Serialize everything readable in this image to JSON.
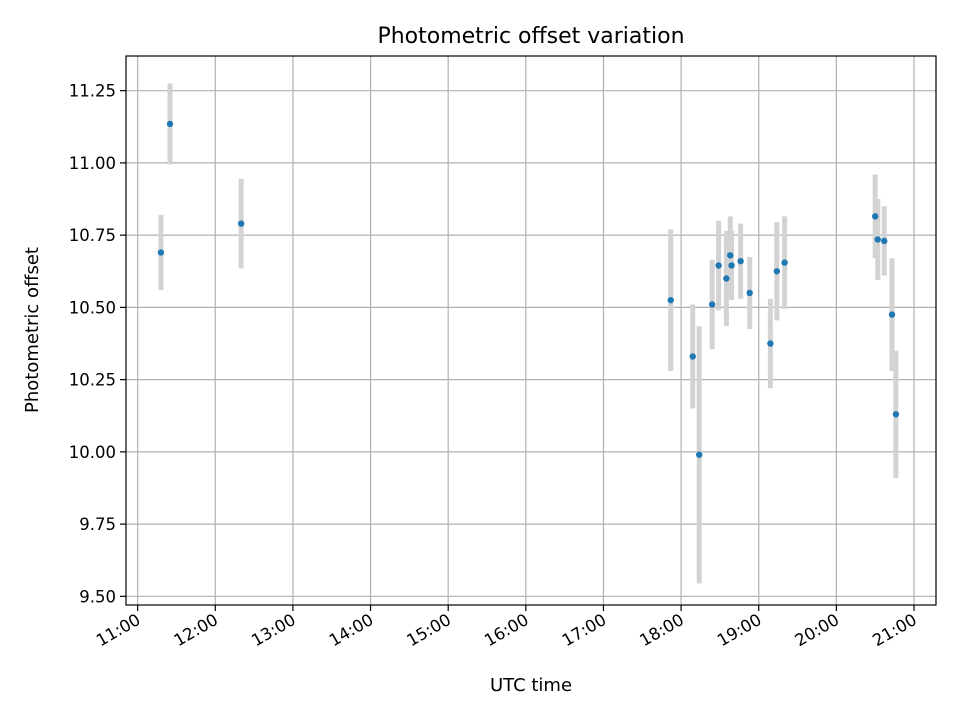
{
  "chart_data": {
    "type": "scatter",
    "title": "Photometric offset variation",
    "xlabel": "UTC time",
    "ylabel": "Photometric offset",
    "x_tick_labels": [
      "11:00",
      "12:00",
      "13:00",
      "14:00",
      "15:00",
      "16:00",
      "17:00",
      "18:00",
      "19:00",
      "20:00",
      "21:00"
    ],
    "y_tick_labels": [
      "9.50",
      "9.75",
      "10.00",
      "10.25",
      "10.50",
      "10.75",
      "11.00",
      "11.25"
    ],
    "xlim": [
      "10:51",
      "21:17"
    ],
    "ylim": [
      9.47,
      11.37
    ],
    "grid": true,
    "marker_color": "#1f77b4",
    "errorbar_color": "#d3d3d3",
    "points": [
      {
        "x": "11:18",
        "y": 10.69,
        "err": 0.13
      },
      {
        "x": "11:25",
        "y": 11.135,
        "err": 0.14
      },
      {
        "x": "12:20",
        "y": 10.79,
        "err": 0.155
      },
      {
        "x": "17:52",
        "y": 10.525,
        "err": 0.245
      },
      {
        "x": "18:09",
        "y": 10.33,
        "err": 0.18
      },
      {
        "x": "18:14",
        "y": 9.99,
        "err": 0.445
      },
      {
        "x": "18:24",
        "y": 10.51,
        "err": 0.155
      },
      {
        "x": "18:29",
        "y": 10.645,
        "err": 0.155
      },
      {
        "x": "18:35",
        "y": 10.6,
        "err": 0.165
      },
      {
        "x": "18:38",
        "y": 10.68,
        "err": 0.135
      },
      {
        "x": "18:39",
        "y": 10.645,
        "err": 0.12
      },
      {
        "x": "18:46",
        "y": 10.66,
        "err": 0.13
      },
      {
        "x": "18:53",
        "y": 10.55,
        "err": 0.125
      },
      {
        "x": "19:09",
        "y": 10.375,
        "err": 0.155
      },
      {
        "x": "19:14",
        "y": 10.625,
        "err": 0.17
      },
      {
        "x": "19:20",
        "y": 10.655,
        "err": 0.16
      },
      {
        "x": "20:30",
        "y": 10.815,
        "err": 0.145
      },
      {
        "x": "20:32",
        "y": 10.735,
        "err": 0.14
      },
      {
        "x": "20:37",
        "y": 10.73,
        "err": 0.12
      },
      {
        "x": "20:43",
        "y": 10.475,
        "err": 0.195
      },
      {
        "x": "20:46",
        "y": 10.13,
        "err": 0.22
      }
    ]
  }
}
